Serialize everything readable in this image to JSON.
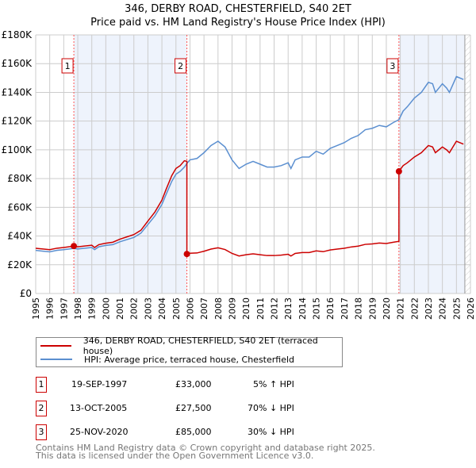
{
  "chart_data": {
    "type": "line",
    "title": "346, DERBY ROAD, CHESTERFIELD, S40 2ET",
    "subtitle": "Price paid vs. HM Land Registry's House Price Index (HPI)",
    "xlim": [
      1995,
      2026
    ],
    "ylim": [
      0,
      180000
    ],
    "x_ticks": [
      "1995",
      "1996",
      "1997",
      "1998",
      "1999",
      "2000",
      "2001",
      "2002",
      "2003",
      "2004",
      "2005",
      "2006",
      "2007",
      "2008",
      "2009",
      "2010",
      "2011",
      "2012",
      "2013",
      "2014",
      "2015",
      "2016",
      "2017",
      "2018",
      "2019",
      "2020",
      "2021",
      "2022",
      "2023",
      "2024",
      "2025",
      "2026"
    ],
    "y_ticks": [
      {
        "v": 0,
        "l": "£0"
      },
      {
        "v": 20000,
        "l": "£20K"
      },
      {
        "v": 40000,
        "l": "£40K"
      },
      {
        "v": 60000,
        "l": "£60K"
      },
      {
        "v": 80000,
        "l": "£80K"
      },
      {
        "v": 100000,
        "l": "£100K"
      },
      {
        "v": 120000,
        "l": "£120K"
      },
      {
        "v": 140000,
        "l": "£140K"
      },
      {
        "v": 160000,
        "l": "£160K"
      },
      {
        "v": 180000,
        "l": "£180K"
      }
    ],
    "grid": true,
    "shaded_ranges": [
      [
        1997.72,
        2005.78
      ],
      [
        2020.9,
        2025.6
      ]
    ],
    "forecast_from": 2025.6,
    "series": [
      {
        "name": "346, DERBY ROAD, CHESTERFIELD, S40 2ET (terraced house)",
        "color": "#cc0000",
        "x": [
          1995,
          1995.5,
          1996,
          1996.5,
          1997,
          1997.72,
          1998,
          1999,
          1999.2,
          1999.5,
          2000,
          2000.5,
          2001,
          2001.5,
          2002,
          2002.5,
          2003,
          2003.5,
          2004,
          2004.3,
          2004.7,
          2005,
          2005.3,
          2005.6,
          2005.78,
          2005.78,
          2006,
          2006.5,
          2007,
          2007.5,
          2008,
          2008.5,
          2009,
          2009.5,
          2010,
          2010.5,
          2011,
          2011.5,
          2012,
          2012.5,
          2013,
          2013.2,
          2013.5,
          2014,
          2014.5,
          2015,
          2015.5,
          2016,
          2016.5,
          2017,
          2017.5,
          2018,
          2018.5,
          2019,
          2019.5,
          2020,
          2020.5,
          2020.9,
          2020.9,
          2021.2,
          2021.5,
          2022,
          2022.5,
          2023,
          2023.3,
          2023.5,
          2024,
          2024.3,
          2024.5,
          2025,
          2025.5
        ],
        "y": [
          31500,
          31000,
          30500,
          31500,
          32000,
          33000,
          32500,
          33600,
          32000,
          34000,
          35000,
          35700,
          37800,
          39400,
          41000,
          44000,
          50400,
          56700,
          65000,
          72500,
          82000,
          87000,
          89000,
          92400,
          92000,
          27500,
          28000,
          28200,
          29400,
          30900,
          31800,
          30600,
          27900,
          26100,
          27000,
          27600,
          27000,
          26400,
          26400,
          26700,
          27300,
          26100,
          27900,
          28500,
          28500,
          29700,
          29100,
          30300,
          30900,
          31500,
          32400,
          33000,
          34200,
          34500,
          35100,
          34800,
          35700,
          36300,
          85000,
          89000,
          91000,
          95000,
          98000,
          103000,
          102000,
          98000,
          102000,
          100000,
          98000,
          106000,
          104000
        ]
      },
      {
        "name": "HPI: Average price, terraced house, Chesterfield",
        "color": "#5b8fd0",
        "x": [
          1995,
          1995.5,
          1996,
          1996.5,
          1997,
          1997.72,
          1998,
          1999,
          1999.2,
          1999.5,
          2000,
          2000.5,
          2001,
          2001.5,
          2002,
          2002.5,
          2003,
          2003.5,
          2004,
          2004.3,
          2004.7,
          2005,
          2005.3,
          2005.6,
          2005.78,
          2006,
          2006.5,
          2007,
          2007.5,
          2008,
          2008.5,
          2009,
          2009.5,
          2010,
          2010.5,
          2011,
          2011.5,
          2012,
          2012.5,
          2013,
          2013.2,
          2013.5,
          2014,
          2014.5,
          2015,
          2015.5,
          2016,
          2016.5,
          2017,
          2017.5,
          2018,
          2018.5,
          2019,
          2019.5,
          2020,
          2020.5,
          2020.9,
          2021.2,
          2021.5,
          2022,
          2022.5,
          2023,
          2023.3,
          2023.5,
          2024,
          2024.3,
          2024.5,
          2025,
          2025.5
        ],
        "y": [
          30000,
          29500,
          29000,
          30000,
          30500,
          31400,
          31000,
          32000,
          30500,
          32500,
          33500,
          34000,
          36000,
          37500,
          39000,
          42000,
          48000,
          54000,
          62000,
          69000,
          78000,
          83000,
          85000,
          88000,
          90500,
          93000,
          94000,
          98000,
          103000,
          106000,
          102000,
          93000,
          87000,
          90000,
          92000,
          90000,
          88000,
          88000,
          89000,
          91000,
          87000,
          93000,
          95000,
          95000,
          99000,
          97000,
          101000,
          103000,
          105000,
          108000,
          110000,
          114000,
          115000,
          117000,
          116000,
          119000,
          121000,
          127000,
          130000,
          136000,
          140000,
          147000,
          146000,
          140000,
          146000,
          143000,
          140000,
          151000,
          149000
        ]
      }
    ],
    "sales": [
      {
        "n": "1",
        "x": 1997.72,
        "y": 33000
      },
      {
        "n": "2",
        "x": 2005.78,
        "y": 27500
      },
      {
        "n": "3",
        "x": 2020.9,
        "y": 85000
      }
    ]
  },
  "legend": [
    "346, DERBY ROAD, CHESTERFIELD, S40 2ET (terraced house)",
    "HPI: Average price, terraced house, Chesterfield"
  ],
  "table": [
    {
      "n": "1",
      "date": "19-SEP-1997",
      "price": "£33,000",
      "hpi": "5% ↑ HPI"
    },
    {
      "n": "2",
      "date": "13-OCT-2005",
      "price": "£27,500",
      "hpi": "70% ↓ HPI"
    },
    {
      "n": "3",
      "date": "25-NOV-2020",
      "price": "£85,000",
      "hpi": "30% ↓ HPI"
    }
  ],
  "footer": [
    "Contains HM Land Registry data © Crown copyright and database right 2025.",
    "This data is licensed under the Open Government Licence v3.0."
  ]
}
